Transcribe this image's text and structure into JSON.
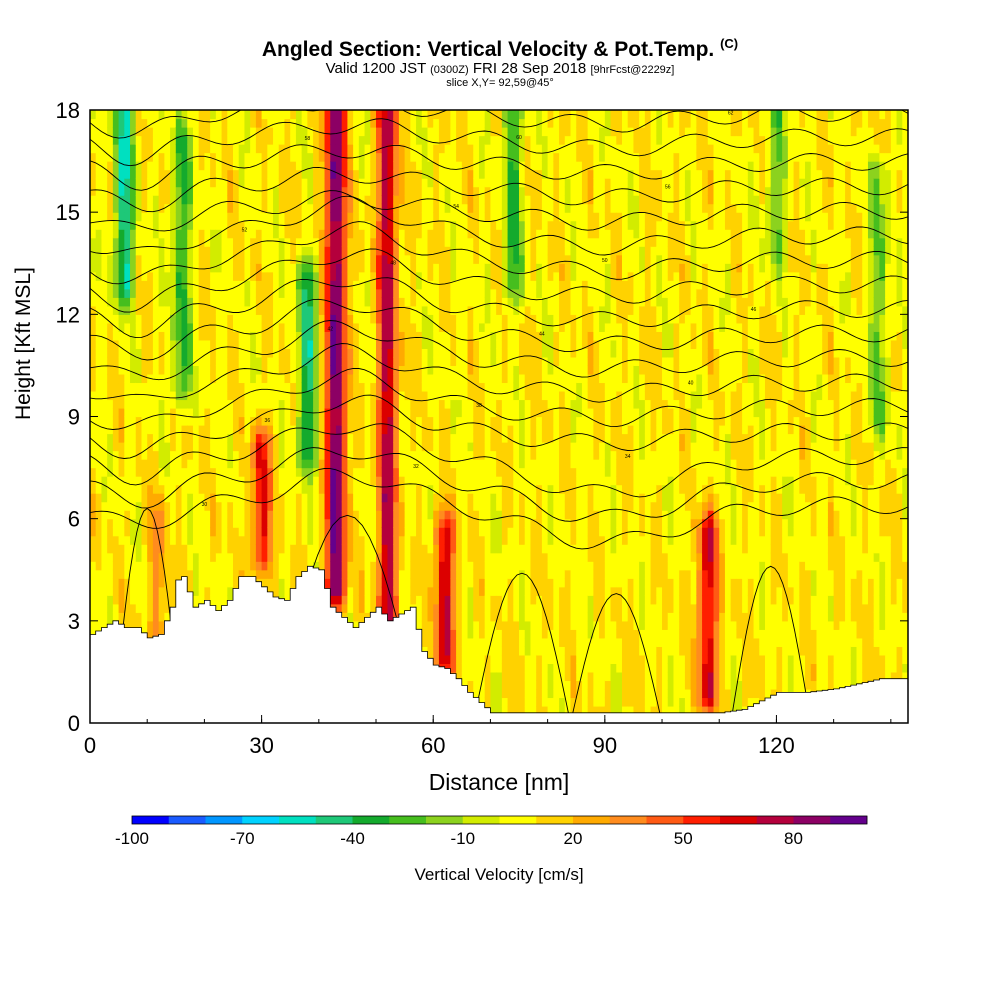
{
  "title": {
    "main": "Angled Section: Vertical Velocity & Pot.Temp.",
    "units": "(C)",
    "valid_prefix": "Valid 1200 JST",
    "valid_utc": "(0300Z)",
    "valid_date": "FRI 28 Sep 2018",
    "forecast": "[9hrFcst@2229z]",
    "slice": "slice X,Y= 92,59@45°"
  },
  "chart_data": {
    "type": "heatmap",
    "title": "Angled Section: Vertical Velocity & Pot.Temp. (C)",
    "xlabel": "Distance [nm]",
    "ylabel": "Height [Kft MSL]",
    "xlim": [
      0,
      143
    ],
    "ylim": [
      0,
      18
    ],
    "x_ticks": [
      0,
      30,
      60,
      90,
      120
    ],
    "y_ticks": [
      0,
      3,
      6,
      9,
      12,
      15,
      18
    ],
    "colorbar": {
      "label": "Vertical Velocity [cm/s]",
      "min": -100,
      "max": 100,
      "step": 10,
      "tick_values": [
        -100,
        -70,
        -40,
        -10,
        20,
        50,
        80
      ],
      "tick_labels": [
        "-100",
        "-70",
        "-40",
        "-10",
        "20",
        "50",
        "80"
      ],
      "colors": [
        "#0000ff",
        "#1a5bff",
        "#0096ff",
        "#00d2ff",
        "#00e0c0",
        "#1ec878",
        "#14aa2d",
        "#46be1e",
        "#8cd21e",
        "#d2ec00",
        "#ffff00",
        "#ffd200",
        "#ffaa00",
        "#ff8c1e",
        "#ff5a14",
        "#ff1e00",
        "#dc0000",
        "#b4003c",
        "#8c0064",
        "#64008c"
      ]
    },
    "updraft_cores": [
      {
        "x": 12,
        "zmin": 2.5,
        "zmax": 6,
        "w": 30
      },
      {
        "x": 30,
        "zmin": 5,
        "zmax": 8,
        "w": 60
      },
      {
        "x": 43,
        "zmin": 4,
        "zmax": 18,
        "w": 95
      },
      {
        "x": 52,
        "zmin": 3,
        "zmax": 18,
        "w": 75
      },
      {
        "x": 62,
        "zmin": 2,
        "zmax": 5.5,
        "w": 70
      },
      {
        "x": 108,
        "zmin": 1,
        "zmax": 5.5,
        "w": 70
      }
    ],
    "downdraft_cores": [
      {
        "x": 6,
        "zmin": 13,
        "zmax": 18,
        "w": -50
      },
      {
        "x": 16,
        "zmin": 10,
        "zmax": 17,
        "w": -30
      },
      {
        "x": 38,
        "zmin": 8,
        "zmax": 13,
        "w": -40
      },
      {
        "x": 74,
        "zmin": 13,
        "zmax": 18,
        "w": -30
      },
      {
        "x": 120,
        "zmin": 14,
        "zmax": 18,
        "w": -20
      },
      {
        "x": 138,
        "zmin": 9,
        "zmax": 16,
        "w": -20
      }
    ],
    "isentropes": {
      "description_units": "Pot.Temp. (C)",
      "levels": [
        30,
        32,
        34,
        36,
        38,
        40,
        42,
        44,
        46,
        48,
        50,
        52,
        54,
        56,
        58,
        60,
        62,
        64
      ]
    },
    "terrain_nm": [
      0,
      4,
      6,
      8,
      10,
      12,
      14,
      15,
      16,
      18,
      20,
      22,
      24,
      26,
      28,
      30,
      32,
      34,
      36,
      38,
      40,
      42,
      44,
      46,
      48,
      50,
      52,
      54,
      56,
      58,
      60,
      62,
      64,
      66,
      68,
      70,
      80,
      90,
      100,
      110,
      114,
      120,
      125,
      130,
      138,
      143
    ],
    "terrain_kft": [
      2.6,
      3.0,
      2.8,
      2.8,
      2.5,
      2.6,
      3.4,
      4.2,
      4.3,
      3.4,
      3.6,
      3.3,
      3.6,
      4.3,
      4.3,
      4.0,
      3.7,
      3.6,
      4.3,
      4.6,
      4.5,
      3.4,
      3.1,
      2.8,
      3.1,
      3.4,
      3.0,
      3.2,
      3.4,
      2.1,
      1.7,
      1.6,
      1.3,
      0.9,
      0.6,
      0.3,
      0.3,
      0.3,
      0.3,
      0.3,
      0.4,
      0.9,
      0.9,
      1.0,
      1.3,
      1.3
    ]
  }
}
